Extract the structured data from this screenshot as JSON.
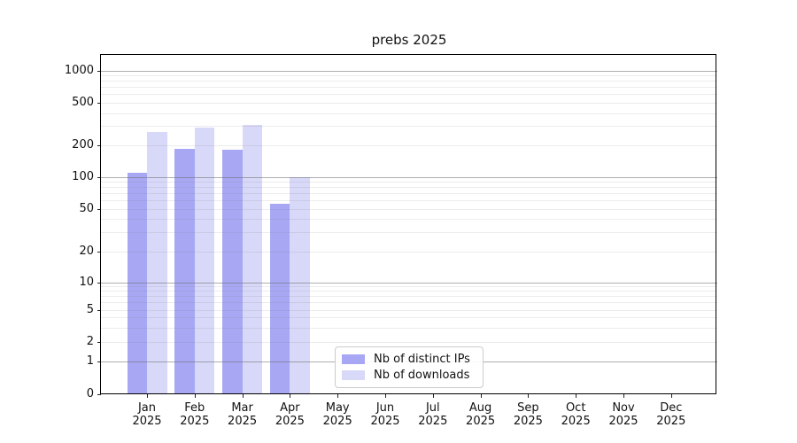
{
  "chart_data": {
    "type": "bar",
    "title": "prebs 2025",
    "categories": [
      "Jan 2025",
      "Feb 2025",
      "Mar 2025",
      "Apr 2025",
      "May 2025",
      "Jun 2025",
      "Jul 2025",
      "Aug 2025",
      "Sep 2025",
      "Oct 2025",
      "Nov 2025",
      "Dec 2025"
    ],
    "series": [
      {
        "name": "Nb of distinct IPs",
        "color": "#a7a7f3",
        "values": [
          110,
          183,
          180,
          56,
          0,
          0,
          0,
          0,
          0,
          0,
          0,
          0
        ]
      },
      {
        "name": "Nb of downloads",
        "color": "#d8d8f9",
        "values": [
          265,
          292,
          308,
          100,
          0,
          0,
          0,
          0,
          0,
          0,
          0,
          0
        ]
      }
    ],
    "yscale": "symlog",
    "yticks": [
      "0",
      "1",
      "2",
      "5",
      "10",
      "20",
      "50",
      "100",
      "200",
      "500",
      "1000"
    ],
    "ylim": [
      0,
      1400
    ],
    "xlabel": "",
    "ylabel": "",
    "grid": {
      "horizontal_major": true,
      "horizontal_minor": true,
      "vertical": false
    },
    "legend": {
      "position": "lower-center-inside"
    }
  },
  "colors": {
    "background": "#ffffff",
    "spine": "#000000",
    "grid_major": "#b0b0b0",
    "grid_minor": "#ececec",
    "legend_border": "#cccccc"
  }
}
